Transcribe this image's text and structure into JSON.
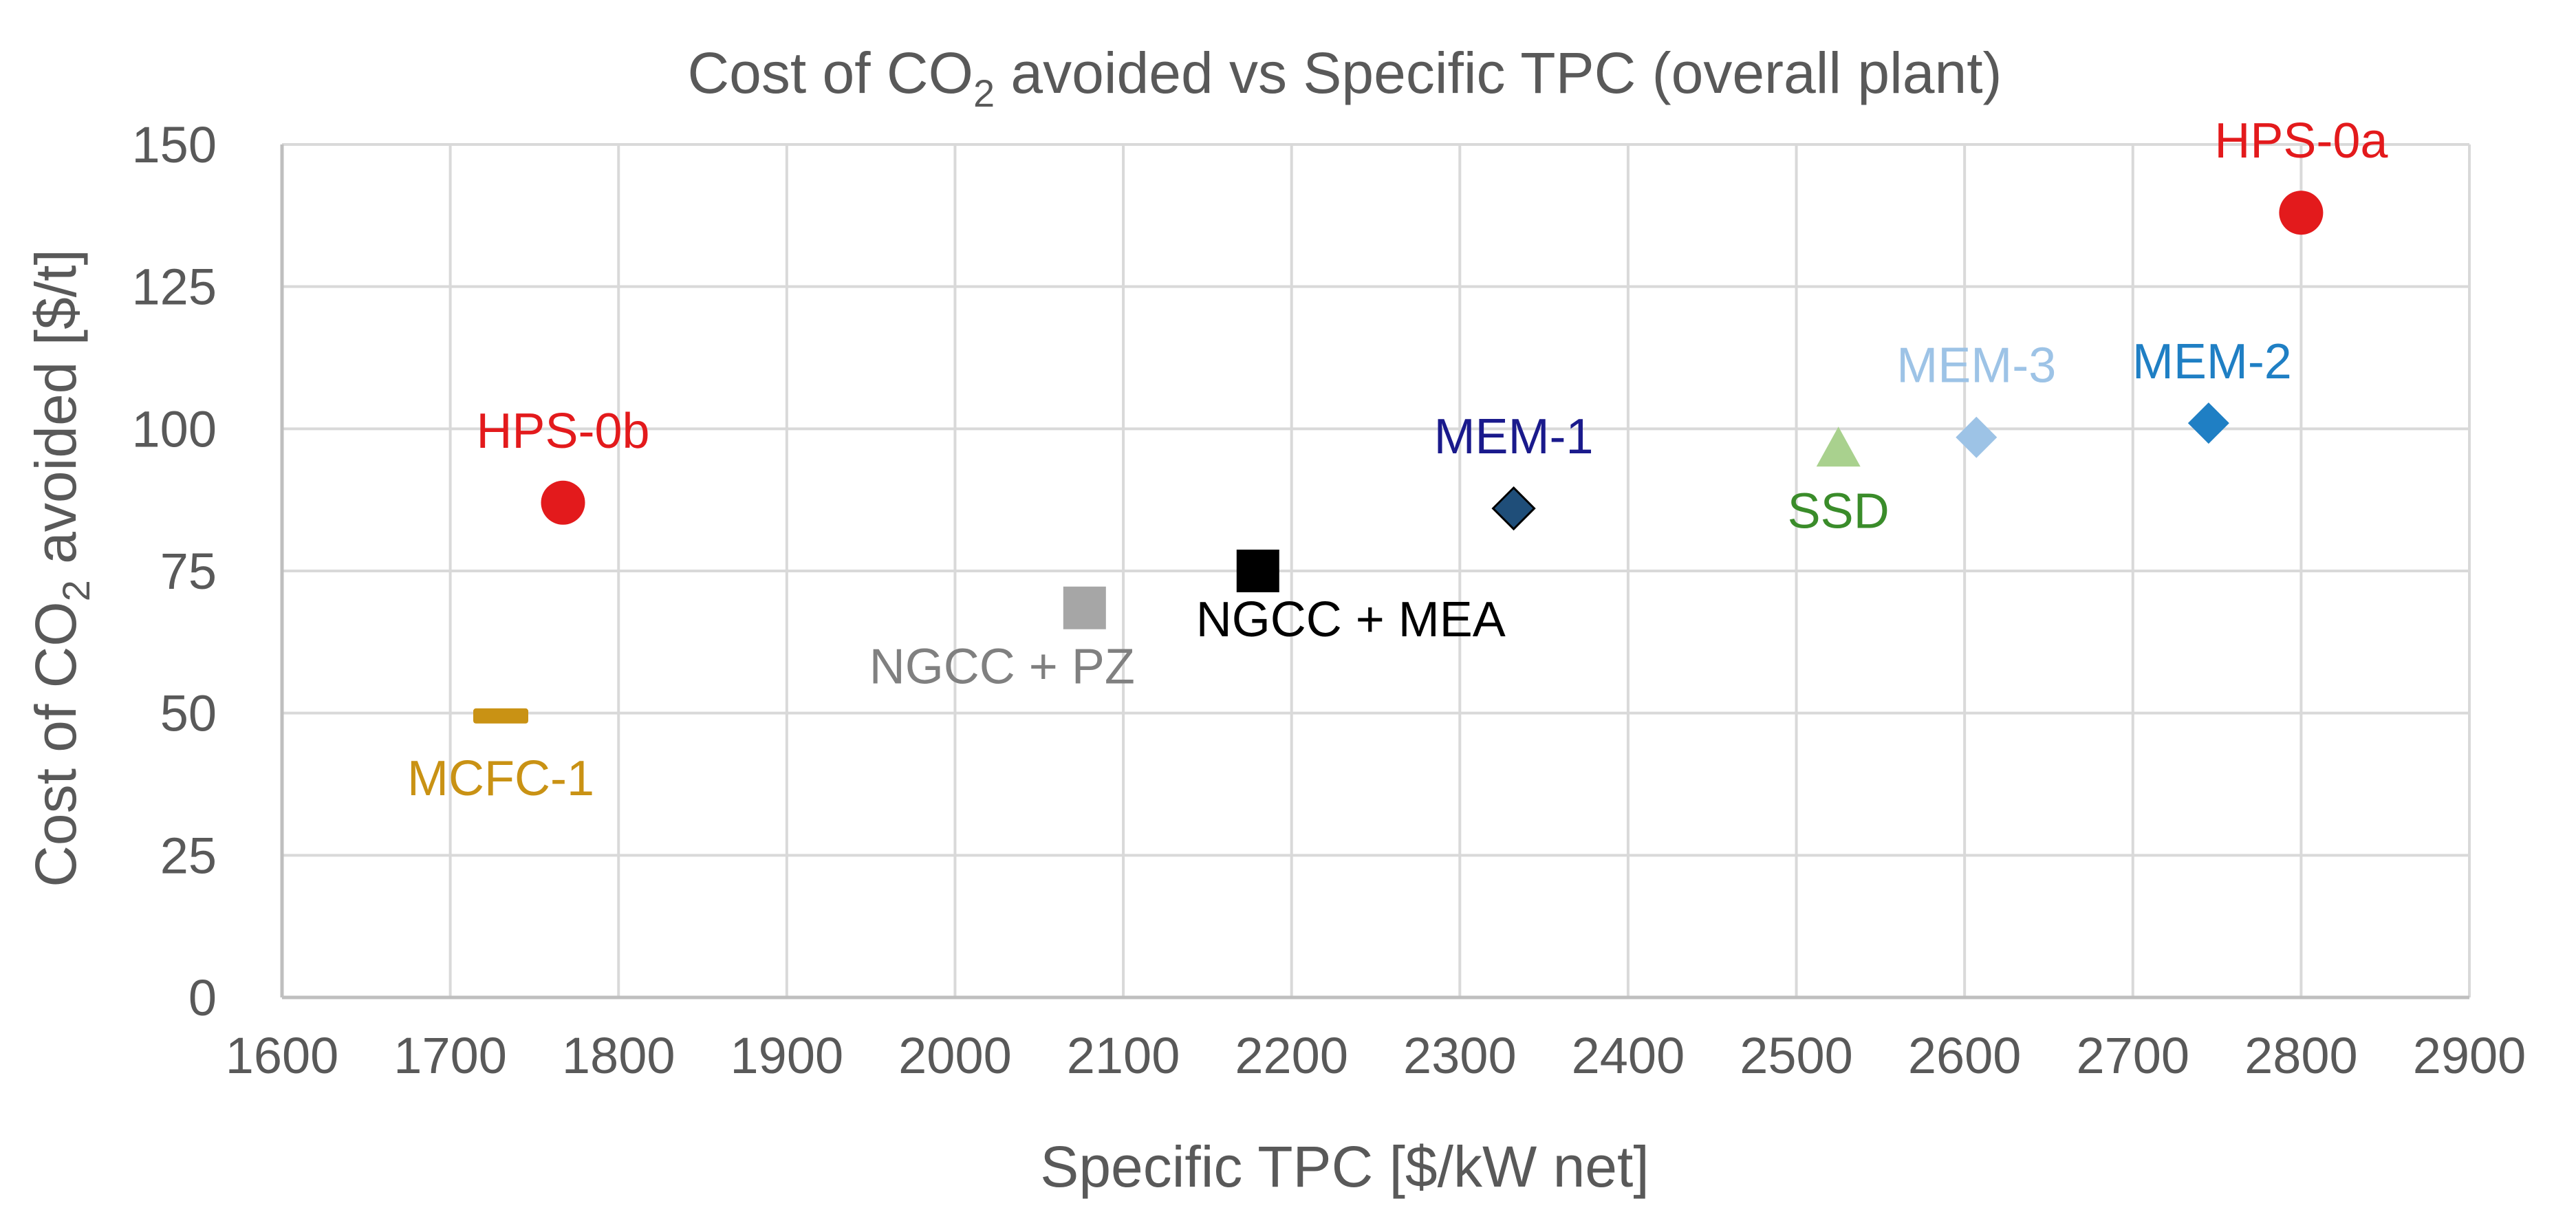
{
  "chart_data": {
    "type": "scatter",
    "title": {
      "prefix": "Cost of CO",
      "subscript": "2",
      "suffix": " avoided vs Specific TPC (overall plant)"
    },
    "xlabel": "Specific TPC [$/kW net]",
    "ylabel": {
      "prefix": "Cost of CO",
      "subscript": "2",
      "suffix": " avoided [$/t]"
    },
    "xlim": [
      1600,
      2900
    ],
    "ylim": [
      0,
      150
    ],
    "x_ticks": [
      1600,
      1700,
      1800,
      1900,
      2000,
      2100,
      2200,
      2300,
      2400,
      2500,
      2600,
      2700,
      2800,
      2900
    ],
    "y_ticks": [
      0,
      25,
      50,
      75,
      100,
      125,
      150
    ],
    "grid": true,
    "legend": "none",
    "series": [
      {
        "name": "HPS-0a",
        "x": 2800,
        "y": 138,
        "marker": "circle",
        "color": "#e31a1c",
        "label_color": "#e31a1c",
        "label_position": "above"
      },
      {
        "name": "HPS-0b",
        "x": 1767,
        "y": 87,
        "marker": "circle",
        "color": "#e31a1c",
        "label_color": "#e31a1c",
        "label_position": "above"
      },
      {
        "name": "MCFC-1",
        "x": 1730,
        "y": 49.5,
        "marker": "dash",
        "color": "#c99214",
        "label_color": "#c99214",
        "label_position": "below"
      },
      {
        "name": "NGCC + PZ",
        "x": 2077,
        "y": 68.5,
        "marker": "square",
        "color": "#a6a6a6",
        "label_color": "#808080",
        "label_position": "below-left"
      },
      {
        "name": "NGCC + MEA",
        "x": 2180,
        "y": 75,
        "marker": "square",
        "color": "#000000",
        "label_color": "#000000",
        "label_position": "below-right"
      },
      {
        "name": "MEM-1",
        "x": 2332,
        "y": 86,
        "marker": "diamond",
        "color": "#1f4e79",
        "label_color": "#1a1a8c",
        "label_position": "above"
      },
      {
        "name": "SSD",
        "x": 2525,
        "y": 96.5,
        "marker": "triangle",
        "color": "#a9d18e",
        "label_color": "#3a8c2a",
        "label_position": "below"
      },
      {
        "name": "MEM-3",
        "x": 2607,
        "y": 98.5,
        "marker": "diamond",
        "color": "#9dc3e6",
        "label_color": "#9dc3e6",
        "label_position": "above"
      },
      {
        "name": "MEM-2",
        "x": 2745,
        "y": 101,
        "marker": "diamond",
        "color": "#1f7fc4",
        "label_color": "#1f7fc4",
        "label_position": "above-left"
      }
    ]
  }
}
